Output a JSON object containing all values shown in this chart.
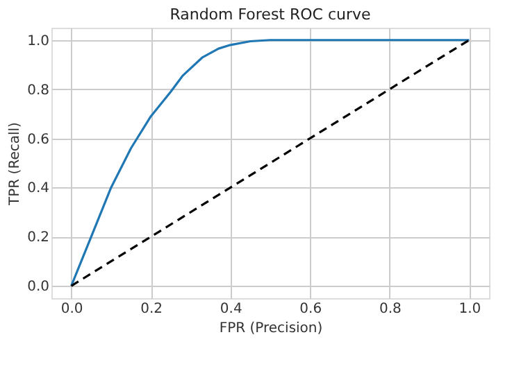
{
  "chart_data": {
    "type": "line",
    "title": "Random Forest ROC curve",
    "xlabel": "FPR (Precision)",
    "ylabel": "TPR (Recall)",
    "series": [
      {
        "color": "#1f77b4",
        "line_style": "solid",
        "x": [
          0,
          0.02,
          0.05,
          0.1,
          0.15,
          0.2,
          0.25,
          0.28,
          0.33,
          0.37,
          0.4,
          0.45,
          0.5,
          0.7,
          1.0
        ],
        "values": [
          0,
          0.08,
          0.2,
          0.4,
          0.56,
          0.69,
          0.79,
          0.855,
          0.93,
          0.965,
          0.98,
          0.995,
          1.0,
          1.0,
          1.0
        ]
      },
      {
        "color": "#000000",
        "line_style": "dashed",
        "x": [
          0,
          1
        ],
        "values": [
          0,
          1
        ]
      }
    ],
    "xlim": [
      -0.05,
      1.05
    ],
    "ylim": [
      -0.05,
      1.05
    ],
    "xticks": [
      {
        "value": 0,
        "label": "0.0"
      },
      0.2,
      0.4,
      0.6,
      0.8,
      {
        "value": 1,
        "label": "1.0"
      }
    ],
    "yticks": [
      {
        "value": 0,
        "label": "0.0"
      },
      0.2,
      0.4,
      0.6,
      0.8,
      {
        "value": 1,
        "label": "1.0"
      }
    ],
    "grid": true,
    "marker": "none"
  }
}
